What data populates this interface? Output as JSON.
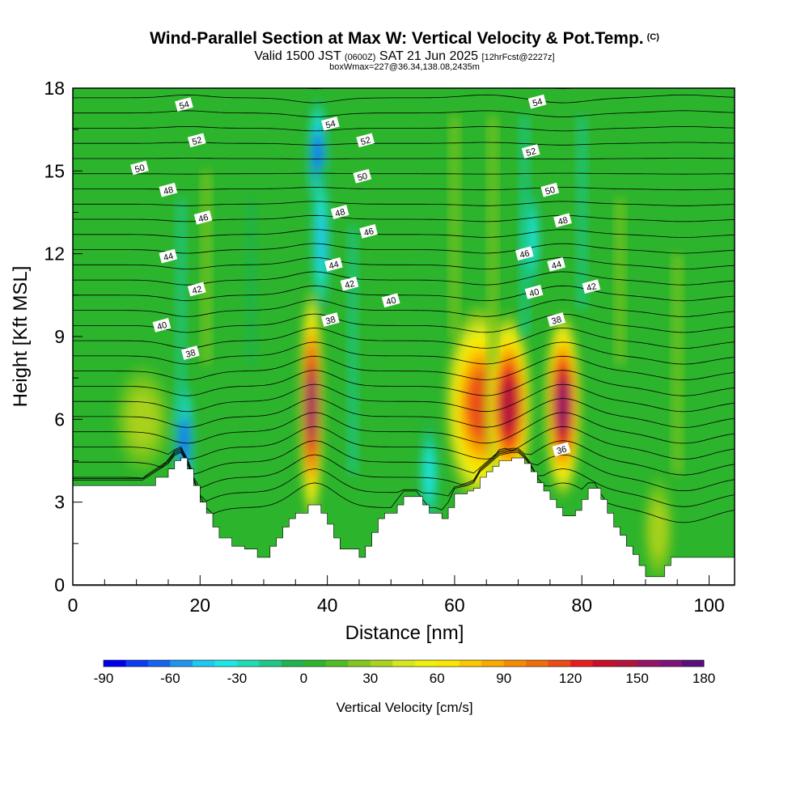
{
  "header": {
    "title": "Wind-Parallel Section at Max W: Vertical Velocity & Pot.Temp.",
    "copyright": "(C)",
    "valid_prefix": "Valid 1500 JST",
    "utc": "(0600Z)",
    "valid_date": "SAT 21 Jun 2025",
    "forecast": "[12hrFcst@2227z]",
    "box_info": "boxWmax=227@36.34,138.08,2435m"
  },
  "colors": {
    "background_field": "#2db42d",
    "terrain": "#ffffff",
    "contour": "#000000"
  },
  "chart_data": {
    "type": "heatmap",
    "xlabel": "Distance [nm]",
    "ylabel": "Height [Kft MSL]",
    "xlim": [
      0,
      104
    ],
    "ylim": [
      0,
      18
    ],
    "x_ticks": [
      0,
      20,
      40,
      60,
      80,
      100
    ],
    "y_ticks": [
      0,
      3,
      6,
      9,
      12,
      15,
      18
    ],
    "x_tick_labels": [
      "0",
      "20",
      "40",
      "60",
      "80",
      "100"
    ],
    "y_tick_labels": [
      "0",
      "3",
      "6",
      "9",
      "12",
      "15",
      "18"
    ],
    "colorbar": {
      "title": "Vertical Velocity [cm/s]",
      "min": -90,
      "max": 180,
      "tick_values": [
        -90,
        -60,
        -30,
        0,
        30,
        60,
        90,
        120,
        150,
        180
      ],
      "tick_labels": [
        "-90",
        "-60",
        "-30",
        "0",
        "30",
        "60",
        "90",
        "120",
        "150",
        "180"
      ],
      "colors": [
        "#0000f0",
        "#0a3cf5",
        "#1464f0",
        "#1e96f0",
        "#1ec8f0",
        "#1ee6e6",
        "#1edcb4",
        "#1ec88c",
        "#1eb450",
        "#2db42d",
        "#50be23",
        "#82c81e",
        "#aad21e",
        "#d7e61e",
        "#f0f00a",
        "#fae600",
        "#fac800",
        "#faaa00",
        "#f58c00",
        "#f06e0a",
        "#eb4b14",
        "#e61e1e",
        "#c80f28",
        "#b4143c",
        "#961464",
        "#7d1478",
        "#5a0f7d"
      ]
    },
    "terrain_profile": {
      "x": [
        0,
        11,
        13,
        15,
        16,
        17,
        18,
        19,
        20,
        21,
        22,
        23,
        25,
        26,
        27,
        29,
        30,
        31,
        32,
        33,
        34,
        35,
        37,
        38,
        39,
        40,
        41,
        42,
        43,
        45,
        46,
        47,
        48,
        49,
        50,
        51,
        52,
        54,
        55,
        56,
        57,
        58,
        59,
        60,
        62,
        63,
        64,
        65,
        66,
        67,
        69,
        70,
        71,
        72,
        73,
        74,
        75,
        76,
        77,
        78,
        79,
        80,
        81,
        82,
        83,
        84,
        85,
        86,
        87,
        88,
        89,
        90,
        91,
        92,
        93,
        94,
        95,
        96,
        97,
        99,
        101,
        103,
        104
      ],
      "y": [
        3.6,
        3.6,
        3.9,
        4.2,
        4.5,
        4.6,
        4.2,
        3.6,
        3.0,
        2.6,
        2.1,
        1.7,
        1.4,
        1.4,
        1.3,
        1.0,
        1.0,
        1.4,
        1.7,
        2.1,
        2.4,
        2.6,
        2.9,
        2.9,
        2.6,
        2.2,
        1.7,
        1.3,
        1.3,
        1.0,
        1.4,
        1.9,
        2.4,
        2.6,
        2.6,
        2.9,
        3.2,
        3.2,
        2.9,
        2.6,
        2.6,
        2.4,
        2.8,
        3.3,
        3.4,
        3.5,
        3.9,
        4.1,
        4.3,
        4.5,
        4.6,
        4.6,
        4.4,
        4.1,
        3.7,
        3.4,
        3.1,
        2.8,
        2.5,
        2.5,
        2.7,
        3.1,
        3.5,
        3.5,
        3.1,
        2.6,
        2.1,
        1.8,
        1.4,
        1.1,
        0.7,
        0.3,
        0.3,
        0.3,
        0.7,
        1.0,
        1.0,
        1.0,
        1.0,
        1.0,
        1.0,
        1.0,
        1.0
      ]
    },
    "w_features": [
      {
        "x": 17.5,
        "y": 5.2,
        "value": -70
      },
      {
        "x": 38.5,
        "y": 15.5,
        "value": -70
      },
      {
        "x": 39.0,
        "y": 12.5,
        "value": -50
      },
      {
        "x": 72.0,
        "y": 12.5,
        "value": -40
      },
      {
        "x": 56.0,
        "y": 4.0,
        "value": -40
      },
      {
        "x": 37.5,
        "y": 6.5,
        "value": 150
      },
      {
        "x": 64.0,
        "y": 6.5,
        "value": 110
      },
      {
        "x": 68.5,
        "y": 6.5,
        "value": 135
      },
      {
        "x": 77.0,
        "y": 6.5,
        "value": 145
      },
      {
        "x": 92.0,
        "y": 2.0,
        "value": 30
      },
      {
        "x": 11.0,
        "y": 6.0,
        "value": 25
      }
    ],
    "theta_contours": [
      {
        "level": 36,
        "label_x": 76.8,
        "label_y": 4.9
      },
      {
        "level": 38,
        "label_x": 18.5,
        "label_y": 8.4
      },
      {
        "level": 38,
        "label_x": 40.5,
        "label_y": 9.6
      },
      {
        "level": 38,
        "label_x": 76.0,
        "label_y": 9.6
      },
      {
        "level": 40,
        "label_x": 14.0,
        "label_y": 9.4
      },
      {
        "level": 40,
        "label_x": 50.0,
        "label_y": 10.3
      },
      {
        "level": 40,
        "label_x": 72.5,
        "label_y": 10.6
      },
      {
        "level": 42,
        "label_x": 19.5,
        "label_y": 10.7
      },
      {
        "level": 42,
        "label_x": 43.5,
        "label_y": 10.9
      },
      {
        "level": 42,
        "label_x": 81.5,
        "label_y": 10.8
      },
      {
        "level": 44,
        "label_x": 15.0,
        "label_y": 11.9
      },
      {
        "level": 44,
        "label_x": 41.0,
        "label_y": 11.6
      },
      {
        "level": 44,
        "label_x": 76.0,
        "label_y": 11.6
      },
      {
        "level": 46,
        "label_x": 20.5,
        "label_y": 13.3
      },
      {
        "level": 46,
        "label_x": 46.5,
        "label_y": 12.8
      },
      {
        "level": 46,
        "label_x": 71.0,
        "label_y": 12.0
      },
      {
        "level": 48,
        "label_x": 15.0,
        "label_y": 14.3
      },
      {
        "level": 48,
        "label_x": 42.0,
        "label_y": 13.5
      },
      {
        "level": 48,
        "label_x": 77.0,
        "label_y": 13.2
      },
      {
        "level": 50,
        "label_x": 10.5,
        "label_y": 15.1
      },
      {
        "level": 50,
        "label_x": 45.5,
        "label_y": 14.8
      },
      {
        "level": 50,
        "label_x": 75.0,
        "label_y": 14.3
      },
      {
        "level": 52,
        "label_x": 19.5,
        "label_y": 16.1
      },
      {
        "level": 52,
        "label_x": 46.0,
        "label_y": 16.1
      },
      {
        "level": 52,
        "label_x": 72.0,
        "label_y": 15.7
      },
      {
        "level": 54,
        "label_x": 17.5,
        "label_y": 17.4
      },
      {
        "level": 54,
        "label_x": 40.5,
        "label_y": 16.7
      },
      {
        "level": 54,
        "label_x": 73.0,
        "label_y": 17.5
      }
    ]
  }
}
